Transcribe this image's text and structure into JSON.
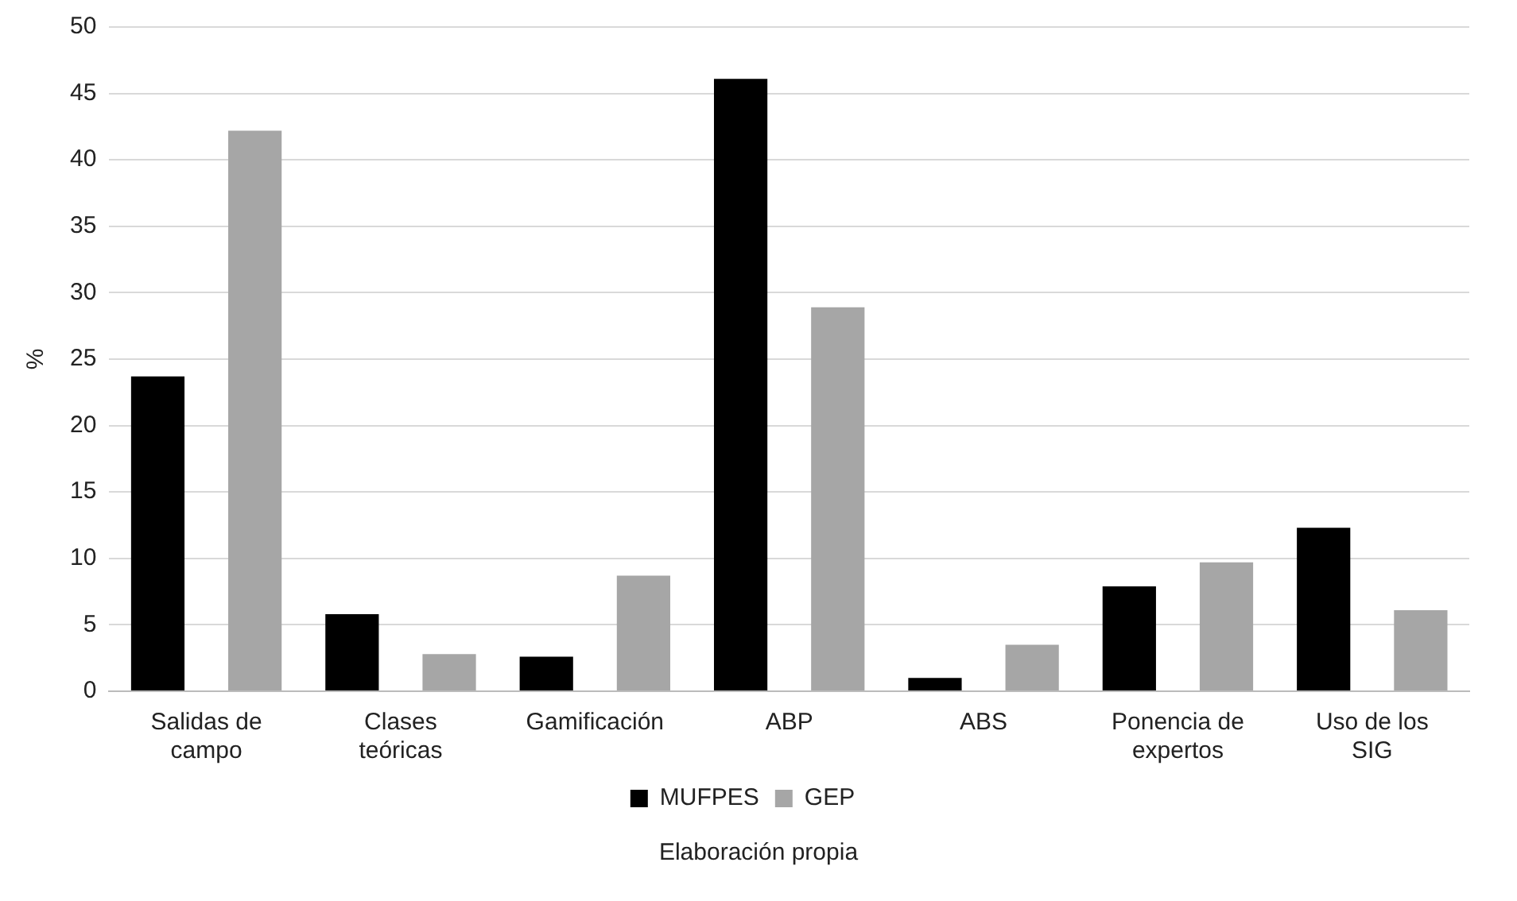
{
  "chart_data": {
    "type": "bar",
    "categories": [
      "Salidas de\ncampo",
      "Clases\nteóricas",
      "Gamificación",
      "ABP",
      "ABS",
      "Ponencia de\nexpertos",
      "Uso de los\nSIG"
    ],
    "series": [
      {
        "name": "MUFPES",
        "color": "#000000",
        "values": [
          23.7,
          5.8,
          2.6,
          46.1,
          1.0,
          7.9,
          12.3
        ]
      },
      {
        "name": "GEP",
        "color": "#a6a6a6",
        "values": [
          42.2,
          2.8,
          8.7,
          28.9,
          3.5,
          9.7,
          6.1
        ]
      }
    ],
    "ylabel": "%",
    "ylim": [
      0,
      50
    ],
    "yticks": [
      0,
      5,
      10,
      15,
      20,
      25,
      30,
      35,
      40,
      45,
      50
    ],
    "grid": "y",
    "legend": "bottom",
    "annotations": [
      "Elaboración propia"
    ]
  }
}
